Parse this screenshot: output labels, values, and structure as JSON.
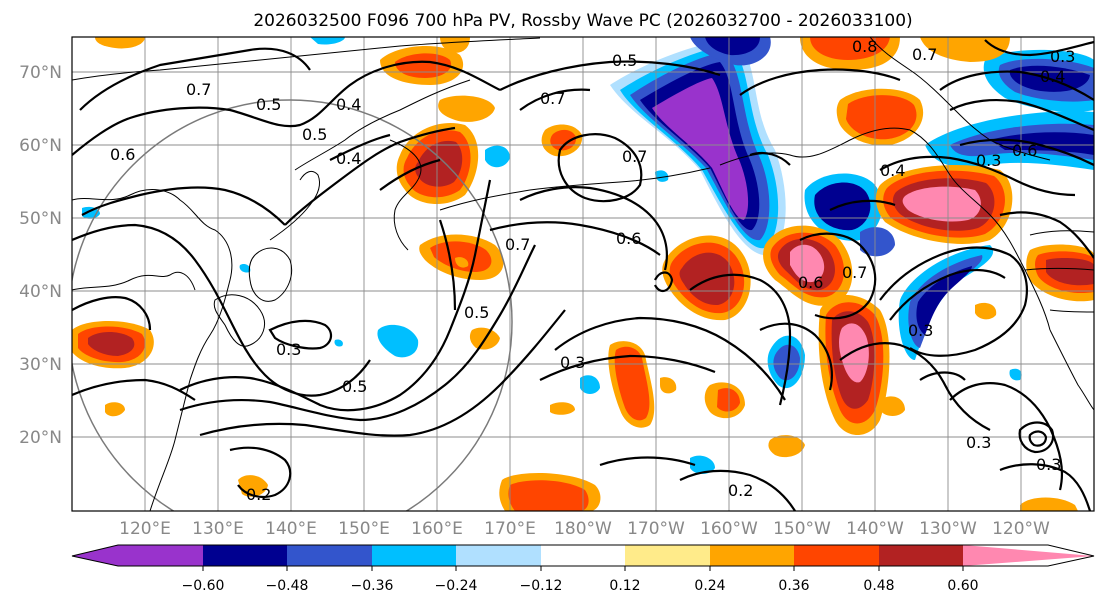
{
  "title": "2026032500 F096 700 hPa PV, Rossby Wave PC (2026032700 - 2026033100)",
  "lat_labels": [
    "70°N",
    "60°N",
    "50°N",
    "40°N",
    "30°N",
    "20°N"
  ],
  "lon_labels": [
    "120°E",
    "130°E",
    "140°E",
    "150°E",
    "160°E",
    "170°E",
    "180°W",
    "170°W",
    "160°W",
    "150°W",
    "140°W",
    "130°W",
    "120°W"
  ],
  "colorbar": {
    "colors": [
      "#9933cc",
      "#000090",
      "#3355cc",
      "#00bfff",
      "#b0e0ff",
      "#ffffff",
      "#ffeb8a",
      "#ffa500",
      "#ff4500",
      "#b22222",
      "#ff88b0"
    ],
    "labels": [
      "−0.60",
      "−0.48",
      "−0.36",
      "−0.24",
      "−0.12",
      "0.12",
      "0.24",
      "0.36",
      "0.48",
      "0.60"
    ]
  },
  "contour_labels": [
    "0.5",
    "0.8",
    "0.7",
    "0.3",
    "0.4",
    "0.7",
    "0.5",
    "0.4",
    "0.5",
    "0.6",
    "0.4",
    "0.7",
    "0.7",
    "0.6",
    "0.6",
    "0.3",
    "0.7",
    "0.4",
    "0.5",
    "0.3",
    "0.3",
    "0.5",
    "0.3",
    "0.3",
    "0.3",
    "0.2",
    "0.2",
    "0.7",
    "0.6"
  ]
}
